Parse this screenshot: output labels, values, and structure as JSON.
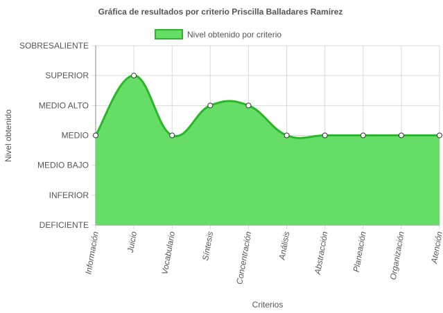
{
  "chart_data": {
    "type": "area",
    "title": "Gráfica de resultados por criterio Priscilla  Balladares Ramírez",
    "xlabel": "Criterios",
    "ylabel": "Nivel obtenido",
    "y_levels": [
      "DEFICIENTE",
      "INFERIOR",
      "MEDIO BAJO",
      "MEDIO",
      "MEDIO ALTO",
      "SUPERIOR",
      "SOBRESALIENTE"
    ],
    "ylim": [
      0,
      6
    ],
    "categories": [
      "Información",
      "Juicio",
      "Vocabulario",
      "Síntesis",
      "Concentración",
      "Análisis",
      "Abstracción",
      "Planeación",
      "Organización",
      "Atención"
    ],
    "series": [
      {
        "name": "Nivel obtenido por criterio",
        "values": [
          3,
          5,
          3,
          4,
          4,
          3,
          3,
          3,
          3,
          3
        ]
      }
    ],
    "legend_position": "top",
    "grid": true,
    "colors": {
      "fill": "#66dd66",
      "line": "#2ab52a",
      "grid": "#d9d9d9",
      "axis": "#888888",
      "text": "#555555"
    }
  }
}
